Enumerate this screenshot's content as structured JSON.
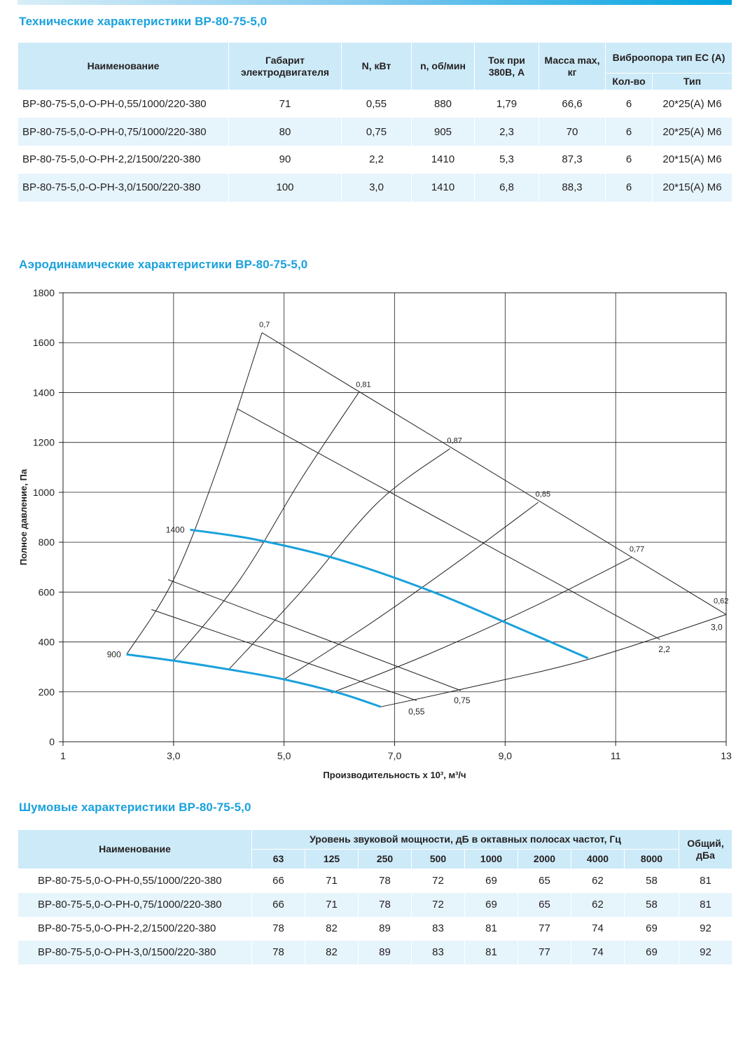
{
  "tech": {
    "title": "Технические характеристики ВР-80-75-5,0",
    "headers": {
      "name": "Наименование",
      "gabarit": "Габарит электродвигателя",
      "n_kw": "N, кВт",
      "rpm": "n, об/мин",
      "current": "Ток при 380В, А",
      "mass": "Масса max, кг",
      "vibro": "Виброопора тип ЕС (А)",
      "qty": "Кол-во",
      "type": "Тип"
    },
    "rows": [
      {
        "name": "ВР-80-75-5,0-О-РН-0,55/1000/220-380",
        "gabarit": "71",
        "n_kw": "0,55",
        "rpm": "880",
        "current": "1,79",
        "mass": "66,6",
        "qty": "6",
        "type": "20*25(А) М6"
      },
      {
        "name": "ВР-80-75-5,0-О-РН-0,75/1000/220-380",
        "gabarit": "80",
        "n_kw": "0,75",
        "rpm": "905",
        "current": "2,3",
        "mass": "70",
        "qty": "6",
        "type": "20*25(А) М6"
      },
      {
        "name": "ВР-80-75-5,0-О-РН-2,2/1500/220-380",
        "gabarit": "90",
        "n_kw": "2,2",
        "rpm": "1410",
        "current": "5,3",
        "mass": "87,3",
        "qty": "6",
        "type": "20*15(А) М6"
      },
      {
        "name": "ВР-80-75-5,0-О-РН-3,0/1500/220-380",
        "gabarit": "100",
        "n_kw": "3,0",
        "rpm": "1410",
        "current": "6,8",
        "mass": "88,3",
        "qty": "6",
        "type": "20*15(А) М6"
      }
    ]
  },
  "aero": {
    "title": "Аэродинамические характеристики ВР-80-75-5,0"
  },
  "chart_data": {
    "type": "line",
    "xlabel": "Производительность х 10³, м³/ч",
    "ylabel": "Полное давление, Па",
    "xlim": [
      1,
      13
    ],
    "ylim": [
      0,
      1800
    ],
    "x_ticks": [
      "1",
      "3,0",
      "5,0",
      "7,0",
      "9,0",
      "11",
      "13"
    ],
    "y_ticks": [
      "0",
      "200",
      "400",
      "600",
      "800",
      "1000",
      "1200",
      "1400",
      "1600",
      "1800"
    ],
    "grid": true,
    "colors": {
      "rpm_curves": "#1aa1dc",
      "lines": "#231f20"
    },
    "rpm_curves": [
      {
        "label": "1400",
        "points": [
          [
            3.3,
            850
          ],
          [
            4.5,
            810
          ],
          [
            6.0,
            730
          ],
          [
            7.7,
            600
          ],
          [
            9.3,
            450
          ],
          [
            10.5,
            335
          ]
        ]
      },
      {
        "label": "900",
        "points": [
          [
            2.15,
            350
          ],
          [
            3.0,
            325
          ],
          [
            4.0,
            290
          ],
          [
            5.0,
            250
          ],
          [
            6.0,
            195
          ],
          [
            6.75,
            140
          ]
        ]
      }
    ],
    "power_lines": [
      {
        "label": "0,55",
        "points": [
          [
            2.6,
            530
          ],
          [
            7.4,
            165
          ]
        ]
      },
      {
        "label": "0,75",
        "points": [
          [
            2.9,
            650
          ],
          [
            8.2,
            205
          ]
        ]
      },
      {
        "label": "2,2",
        "points": [
          [
            4.15,
            1335
          ],
          [
            11.8,
            410
          ]
        ]
      },
      {
        "label": "3,0",
        "points": [
          [
            4.6,
            1640
          ],
          [
            13.0,
            510
          ]
        ]
      }
    ],
    "efficiency_curves": [
      {
        "label": "0,7",
        "points": [
          [
            2.15,
            350
          ],
          [
            3.0,
            650
          ],
          [
            3.8,
            1100
          ],
          [
            4.6,
            1640
          ]
        ]
      },
      {
        "label": "0,81",
        "points": [
          [
            3.0,
            325
          ],
          [
            4.2,
            650
          ],
          [
            5.3,
            1050
          ],
          [
            6.35,
            1400
          ]
        ]
      },
      {
        "label": "0,87",
        "points": [
          [
            4.0,
            290
          ],
          [
            5.3,
            600
          ],
          [
            6.7,
            960
          ],
          [
            8.0,
            1175
          ]
        ]
      },
      {
        "label": "0,85",
        "points": [
          [
            5.0,
            250
          ],
          [
            6.6,
            480
          ],
          [
            8.2,
            730
          ],
          [
            9.6,
            960
          ]
        ]
      },
      {
        "label": "0,77",
        "points": [
          [
            5.85,
            195
          ],
          [
            7.6,
            350
          ],
          [
            9.5,
            540
          ],
          [
            11.3,
            740
          ]
        ]
      },
      {
        "label": "0,62",
        "points": [
          [
            6.75,
            140
          ],
          [
            8.2,
            210
          ],
          [
            10.5,
            330
          ],
          [
            13.0,
            510
          ]
        ]
      }
    ]
  },
  "noise": {
    "title": "Шумовые характеристики ВР-80-75-5,0",
    "headers": {
      "name": "Наименование",
      "level": "Уровень звуковой мощности, дБ в октавных полосах частот, Гц",
      "total": "Общий, дБа",
      "freqs": [
        "63",
        "125",
        "250",
        "500",
        "1000",
        "2000",
        "4000",
        "8000"
      ]
    },
    "rows": [
      {
        "name": "ВР-80-75-5,0-О-РН-0,55/1000/220-380",
        "vals": [
          "66",
          "71",
          "78",
          "72",
          "69",
          "65",
          "62",
          "58"
        ],
        "total": "81"
      },
      {
        "name": "ВР-80-75-5,0-О-РН-0,75/1000/220-380",
        "vals": [
          "66",
          "71",
          "78",
          "72",
          "69",
          "65",
          "62",
          "58"
        ],
        "total": "81"
      },
      {
        "name": "ВР-80-75-5,0-О-РН-2,2/1500/220-380",
        "vals": [
          "78",
          "82",
          "89",
          "83",
          "81",
          "77",
          "74",
          "69"
        ],
        "total": "92"
      },
      {
        "name": "ВР-80-75-5,0-О-РН-3,0/1500/220-380",
        "vals": [
          "78",
          "82",
          "89",
          "83",
          "81",
          "77",
          "74",
          "69"
        ],
        "total": "92"
      }
    ]
  }
}
